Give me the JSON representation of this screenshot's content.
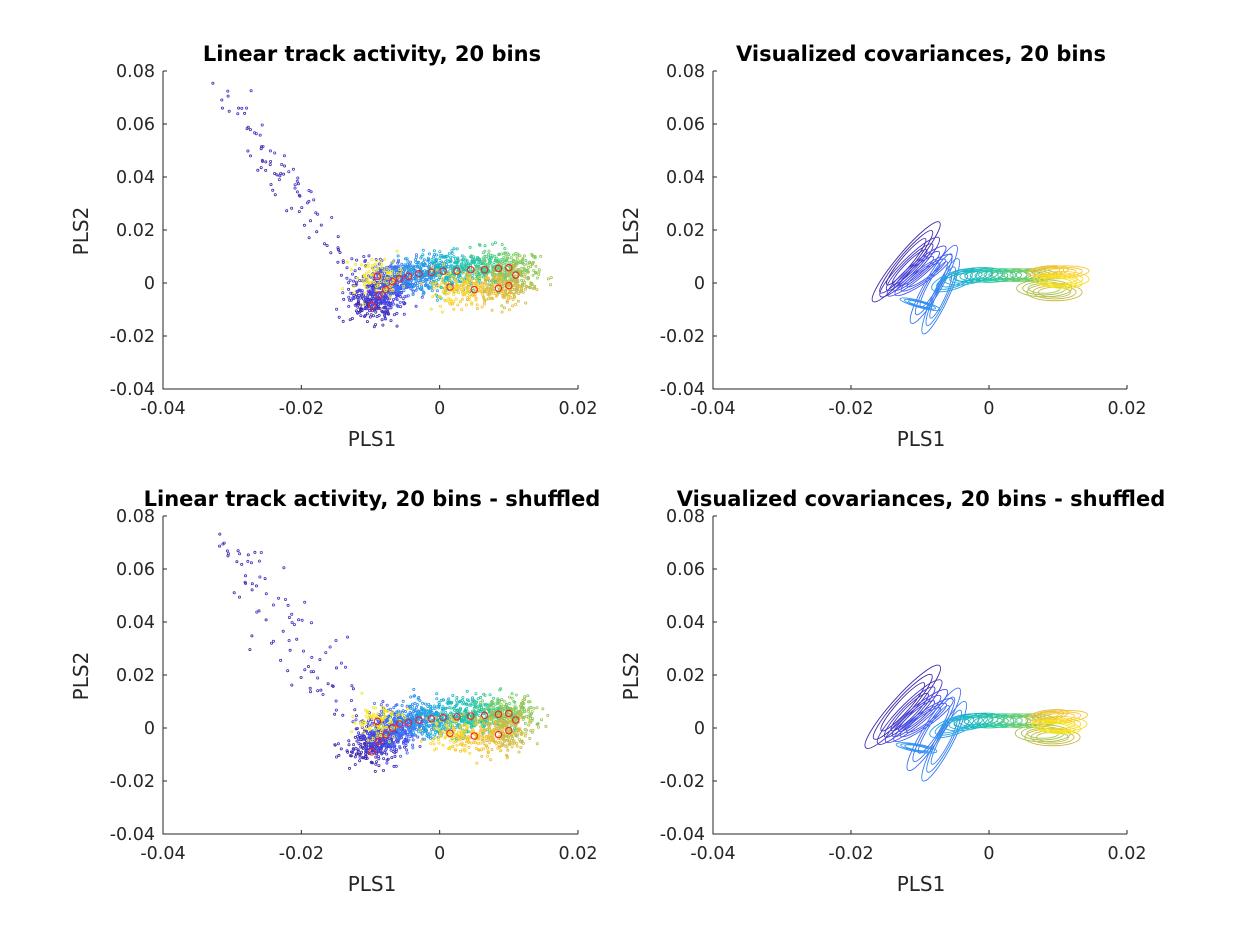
{
  "colors": {
    "bin_colormap": [
      "#3e26a8",
      "#4443e6",
      "#3f68fb",
      "#2d8cf0",
      "#1eaadc",
      "#17c0b8",
      "#3bcc8c",
      "#86cb58",
      "#d0b844",
      "#fbc531",
      "#f7e81a"
    ],
    "bin_centers": "#e8262b",
    "axis": "#262626"
  },
  "chart_data": [
    {
      "id": "activity",
      "type": "scatter",
      "title": "Linear track activity, 20 bins",
      "xlabel": "PLS1",
      "ylabel": "PLS2",
      "xlim": [
        -0.04,
        0.02
      ],
      "ylim": [
        -0.04,
        0.08
      ],
      "xticks": [
        "-0.04",
        "-0.02",
        "0",
        "0.02"
      ],
      "yticks": [
        "-0.04",
        "-0.02",
        "0",
        "0.02",
        "0.04",
        "0.06",
        "0.08"
      ],
      "grid": false,
      "marker": "point cloud colored by bin (20 bins), bin centers as red circles",
      "bin_means": [
        {
          "bin": 1,
          "x": -0.0098,
          "y": -0.0085
        },
        {
          "bin": 2,
          "x": -0.0088,
          "y": -0.0045
        },
        {
          "bin": 3,
          "x": -0.0078,
          "y": -0.0025
        },
        {
          "bin": 4,
          "x": -0.0068,
          "y": 0.0005
        },
        {
          "bin": 5,
          "x": -0.0058,
          "y": 0.0015
        },
        {
          "bin": 6,
          "x": -0.0045,
          "y": 0.0025
        },
        {
          "bin": 7,
          "x": -0.003,
          "y": 0.0035
        },
        {
          "bin": 8,
          "x": -0.0012,
          "y": 0.004
        },
        {
          "bin": 9,
          "x": 0.0005,
          "y": 0.0045
        },
        {
          "bin": 10,
          "x": 0.0025,
          "y": 0.0045
        },
        {
          "bin": 11,
          "x": 0.0045,
          "y": 0.005
        },
        {
          "bin": 12,
          "x": 0.0065,
          "y": 0.005
        },
        {
          "bin": 13,
          "x": 0.0085,
          "y": 0.0055
        },
        {
          "bin": 14,
          "x": 0.01,
          "y": 0.0058
        },
        {
          "bin": 15,
          "x": 0.011,
          "y": 0.003
        },
        {
          "bin": 16,
          "x": 0.01,
          "y": -0.001
        },
        {
          "bin": 17,
          "x": 0.0085,
          "y": -0.002
        },
        {
          "bin": 18,
          "x": 0.005,
          "y": -0.0025
        },
        {
          "bin": 19,
          "x": 0.0015,
          "y": -0.0015
        },
        {
          "bin": 20,
          "x": -0.009,
          "y": 0.0025
        }
      ]
    },
    {
      "id": "covariance",
      "type": "ellipses",
      "title": "Visualized covariances, 20 bins",
      "xlabel": "PLS1",
      "ylabel": "PLS2",
      "xlim": [
        -0.04,
        0.02
      ],
      "ylim": [
        -0.04,
        0.08
      ],
      "xticks": [
        "-0.04",
        "-0.02",
        "0",
        "0.02"
      ],
      "yticks": [
        "-0.04",
        "-0.02",
        "0",
        "0.02",
        "0.04",
        "0.06",
        "0.08"
      ],
      "grid": false,
      "ellipses": [
        {
          "bin": 1,
          "cx": -0.012,
          "cy": 0.008,
          "rx": 0.0075,
          "ry": 0.0022,
          "angle": -50
        },
        {
          "bin": 2,
          "cx": -0.0115,
          "cy": 0.006,
          "rx": 0.006,
          "ry": 0.002,
          "angle": -45
        },
        {
          "bin": 3,
          "cx": -0.0105,
          "cy": 0.0045,
          "rx": 0.0055,
          "ry": 0.0018,
          "angle": -40
        },
        {
          "bin": 4,
          "cx": -0.0095,
          "cy": 0.003,
          "rx": 0.005,
          "ry": 0.0017,
          "angle": -35
        },
        {
          "bin": 5,
          "cx": -0.008,
          "cy": -0.0005,
          "rx": 0.0065,
          "ry": 0.002,
          "angle": -60
        },
        {
          "bin": 6,
          "cx": -0.007,
          "cy": -0.005,
          "rx": 0.006,
          "ry": 0.0018,
          "angle": -65
        },
        {
          "bin": 7,
          "cx": -0.01,
          "cy": -0.008,
          "rx": 0.003,
          "ry": 0.0008,
          "angle": 15
        },
        {
          "bin": 8,
          "cx": -0.005,
          "cy": 0.001,
          "rx": 0.0035,
          "ry": 0.002,
          "angle": -20
        },
        {
          "bin": 9,
          "cx": -0.003,
          "cy": 0.0025,
          "rx": 0.0035,
          "ry": 0.0018,
          "angle": -10
        },
        {
          "bin": 10,
          "cx": -0.0015,
          "cy": 0.003,
          "rx": 0.0035,
          "ry": 0.0017,
          "angle": -5
        },
        {
          "bin": 11,
          "cx": 0.0,
          "cy": 0.0028,
          "rx": 0.0035,
          "ry": 0.0016,
          "angle": 0
        },
        {
          "bin": 12,
          "cx": 0.002,
          "cy": 0.003,
          "rx": 0.0035,
          "ry": 0.0015,
          "angle": 0
        },
        {
          "bin": 13,
          "cx": 0.004,
          "cy": 0.003,
          "rx": 0.0035,
          "ry": 0.0015,
          "angle": 0
        },
        {
          "bin": 14,
          "cx": 0.006,
          "cy": 0.003,
          "rx": 0.0038,
          "ry": 0.0015,
          "angle": 0
        },
        {
          "bin": 15,
          "cx": 0.008,
          "cy": -0.002,
          "rx": 0.004,
          "ry": 0.002,
          "angle": 0
        },
        {
          "bin": 16,
          "cx": 0.0095,
          "cy": -0.0035,
          "rx": 0.004,
          "ry": 0.002,
          "angle": 0
        },
        {
          "bin": 17,
          "cx": 0.0085,
          "cy": 0.0045,
          "rx": 0.003,
          "ry": 0.0012,
          "angle": -5
        },
        {
          "bin": 18,
          "cx": 0.01,
          "cy": 0.004,
          "rx": 0.0045,
          "ry": 0.0015,
          "angle": -3
        },
        {
          "bin": 19,
          "cx": 0.0105,
          "cy": 0.0015,
          "rx": 0.004,
          "ry": 0.0018,
          "angle": 0
        },
        {
          "bin": 20,
          "cx": 0.01,
          "cy": 0.0005,
          "rx": 0.0035,
          "ry": 0.0015,
          "angle": 5
        }
      ]
    },
    {
      "id": "activity_shuffled",
      "type": "scatter",
      "title": "Linear track activity, 20 bins - shuffled",
      "xlabel": "PLS1",
      "ylabel": "PLS2",
      "xlim": [
        -0.04,
        0.02
      ],
      "ylim": [
        -0.04,
        0.08
      ],
      "xticks": [
        "-0.04",
        "-0.02",
        "0",
        "0.02"
      ],
      "yticks": [
        "-0.04",
        "-0.02",
        "0",
        "0.02",
        "0.04",
        "0.06",
        "0.08"
      ],
      "grid": false,
      "marker": "point cloud colored by bin (20 bins), bin centers as red circles",
      "bin_means": [
        {
          "bin": 1,
          "x": -0.0098,
          "y": -0.009
        },
        {
          "bin": 2,
          "x": -0.0088,
          "y": -0.005
        },
        {
          "bin": 3,
          "x": -0.0078,
          "y": -0.0025
        },
        {
          "bin": 4,
          "x": -0.0068,
          "y": 0.0
        },
        {
          "bin": 5,
          "x": -0.0058,
          "y": 0.0015
        },
        {
          "bin": 6,
          "x": -0.0045,
          "y": 0.002
        },
        {
          "bin": 7,
          "x": -0.003,
          "y": 0.003
        },
        {
          "bin": 8,
          "x": -0.0012,
          "y": 0.0035
        },
        {
          "bin": 9,
          "x": 0.0005,
          "y": 0.004
        },
        {
          "bin": 10,
          "x": 0.0025,
          "y": 0.0042
        },
        {
          "bin": 11,
          "x": 0.0045,
          "y": 0.0045
        },
        {
          "bin": 12,
          "x": 0.0065,
          "y": 0.0048
        },
        {
          "bin": 13,
          "x": 0.0085,
          "y": 0.0052
        },
        {
          "bin": 14,
          "x": 0.01,
          "y": 0.0055
        },
        {
          "bin": 15,
          "x": 0.011,
          "y": 0.003
        },
        {
          "bin": 16,
          "x": 0.01,
          "y": -0.001
        },
        {
          "bin": 17,
          "x": 0.0085,
          "y": -0.0025
        },
        {
          "bin": 18,
          "x": 0.005,
          "y": -0.003
        },
        {
          "bin": 19,
          "x": 0.0015,
          "y": -0.002
        },
        {
          "bin": 20,
          "x": -0.009,
          "y": 0.0025
        }
      ]
    },
    {
      "id": "covariance_shuffled",
      "type": "ellipses",
      "title": "Visualized covariances, 20 bins - shuffled",
      "xlabel": "PLS1",
      "ylabel": "PLS2",
      "xlim": [
        -0.04,
        0.02
      ],
      "ylim": [
        -0.04,
        0.08
      ],
      "xticks": [
        "-0.04",
        "-0.02",
        "0",
        "0.02"
      ],
      "yticks": [
        "-0.04",
        "-0.02",
        "0",
        "0.02",
        "0.04",
        "0.06",
        "0.08"
      ],
      "grid": false,
      "ellipses": [
        {
          "bin": 1,
          "cx": -0.0125,
          "cy": 0.008,
          "rx": 0.008,
          "ry": 0.0025,
          "angle": -48
        },
        {
          "bin": 2,
          "cx": -0.0115,
          "cy": 0.006,
          "rx": 0.0065,
          "ry": 0.0022,
          "angle": -45
        },
        {
          "bin": 3,
          "cx": -0.0105,
          "cy": 0.0045,
          "rx": 0.0058,
          "ry": 0.002,
          "angle": -40
        },
        {
          "bin": 4,
          "cx": -0.0095,
          "cy": 0.003,
          "rx": 0.0052,
          "ry": 0.0018,
          "angle": -35
        },
        {
          "bin": 5,
          "cx": -0.008,
          "cy": -0.0005,
          "rx": 0.007,
          "ry": 0.0022,
          "angle": -58
        },
        {
          "bin": 6,
          "cx": -0.0065,
          "cy": -0.005,
          "rx": 0.0065,
          "ry": 0.002,
          "angle": -62
        },
        {
          "bin": 7,
          "cx": -0.0105,
          "cy": -0.0075,
          "rx": 0.003,
          "ry": 0.0009,
          "angle": 10
        },
        {
          "bin": 8,
          "cx": -0.005,
          "cy": 0.0008,
          "rx": 0.0038,
          "ry": 0.002,
          "angle": -20
        },
        {
          "bin": 9,
          "cx": -0.003,
          "cy": 0.0022,
          "rx": 0.0036,
          "ry": 0.0018,
          "angle": -10
        },
        {
          "bin": 10,
          "cx": -0.0015,
          "cy": 0.0028,
          "rx": 0.0036,
          "ry": 0.0017,
          "angle": -5
        },
        {
          "bin": 11,
          "cx": 0.0,
          "cy": 0.0026,
          "rx": 0.0036,
          "ry": 0.0016,
          "angle": 0
        },
        {
          "bin": 12,
          "cx": 0.002,
          "cy": 0.0028,
          "rx": 0.0036,
          "ry": 0.0016,
          "angle": 0
        },
        {
          "bin": 13,
          "cx": 0.004,
          "cy": 0.0028,
          "rx": 0.0036,
          "ry": 0.0016,
          "angle": 0
        },
        {
          "bin": 14,
          "cx": 0.006,
          "cy": 0.0028,
          "rx": 0.0038,
          "ry": 0.0016,
          "angle": 0
        },
        {
          "bin": 15,
          "cx": 0.0078,
          "cy": -0.002,
          "rx": 0.004,
          "ry": 0.002,
          "angle": 0
        },
        {
          "bin": 16,
          "cx": 0.0092,
          "cy": -0.0035,
          "rx": 0.004,
          "ry": 0.002,
          "angle": 0
        },
        {
          "bin": 17,
          "cx": 0.0085,
          "cy": 0.0048,
          "rx": 0.003,
          "ry": 0.0012,
          "angle": -8
        },
        {
          "bin": 18,
          "cx": 0.0098,
          "cy": 0.004,
          "rx": 0.0045,
          "ry": 0.0015,
          "angle": -5
        },
        {
          "bin": 19,
          "cx": 0.0102,
          "cy": 0.0015,
          "rx": 0.004,
          "ry": 0.0018,
          "angle": 0
        },
        {
          "bin": 20,
          "cx": 0.0098,
          "cy": 0.0003,
          "rx": 0.0035,
          "ry": 0.0015,
          "angle": 5
        }
      ]
    }
  ]
}
